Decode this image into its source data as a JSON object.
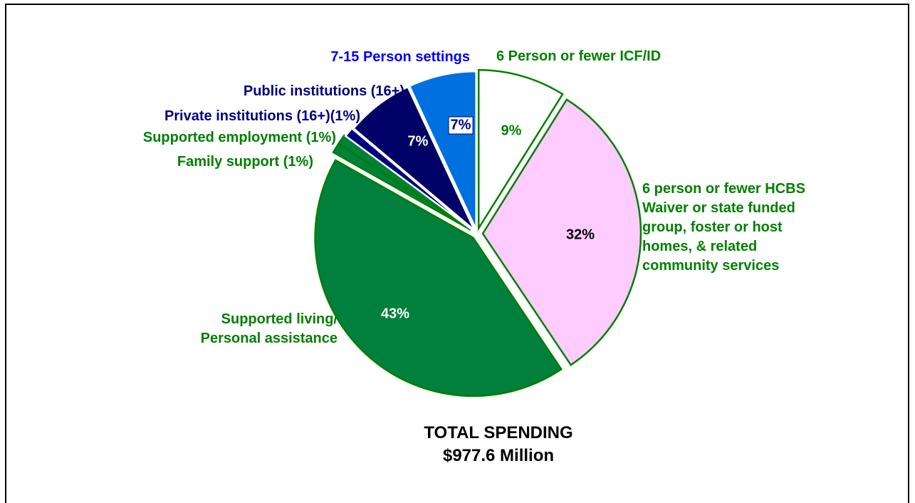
{
  "chart_data": {
    "type": "pie",
    "title": "TOTAL SPENDING\n$977.6 Million",
    "categories": [
      "6 Person or fewer ICF/ID",
      "6 person or fewer HCBS\nWaiver or state funded\ngroup, foster or host\nhomes, & related\ncommunity services",
      "Supported living/\nPersonal assistance",
      "Family support (1%)",
      "Supported employment (1%)",
      "Private institutions (16+)(1%)",
      "Public institutions (16+)",
      "7-15 Person settings"
    ],
    "values": [
      9,
      32,
      43,
      1,
      1,
      1,
      7,
      7
    ],
    "value_labels": [
      "9%",
      "32%",
      "43%",
      null,
      null,
      null,
      "7%",
      "7%"
    ],
    "colors": [
      "#ffffff",
      "#ffccff",
      "#00803c",
      "#00803c",
      "#00803c",
      "#000080",
      "#000066",
      "#0070e0"
    ],
    "label_colors": [
      "#008000",
      "#008000",
      "#008000",
      "#008000",
      "#008000",
      "#000080",
      "#000080",
      "#0000ff"
    ]
  }
}
